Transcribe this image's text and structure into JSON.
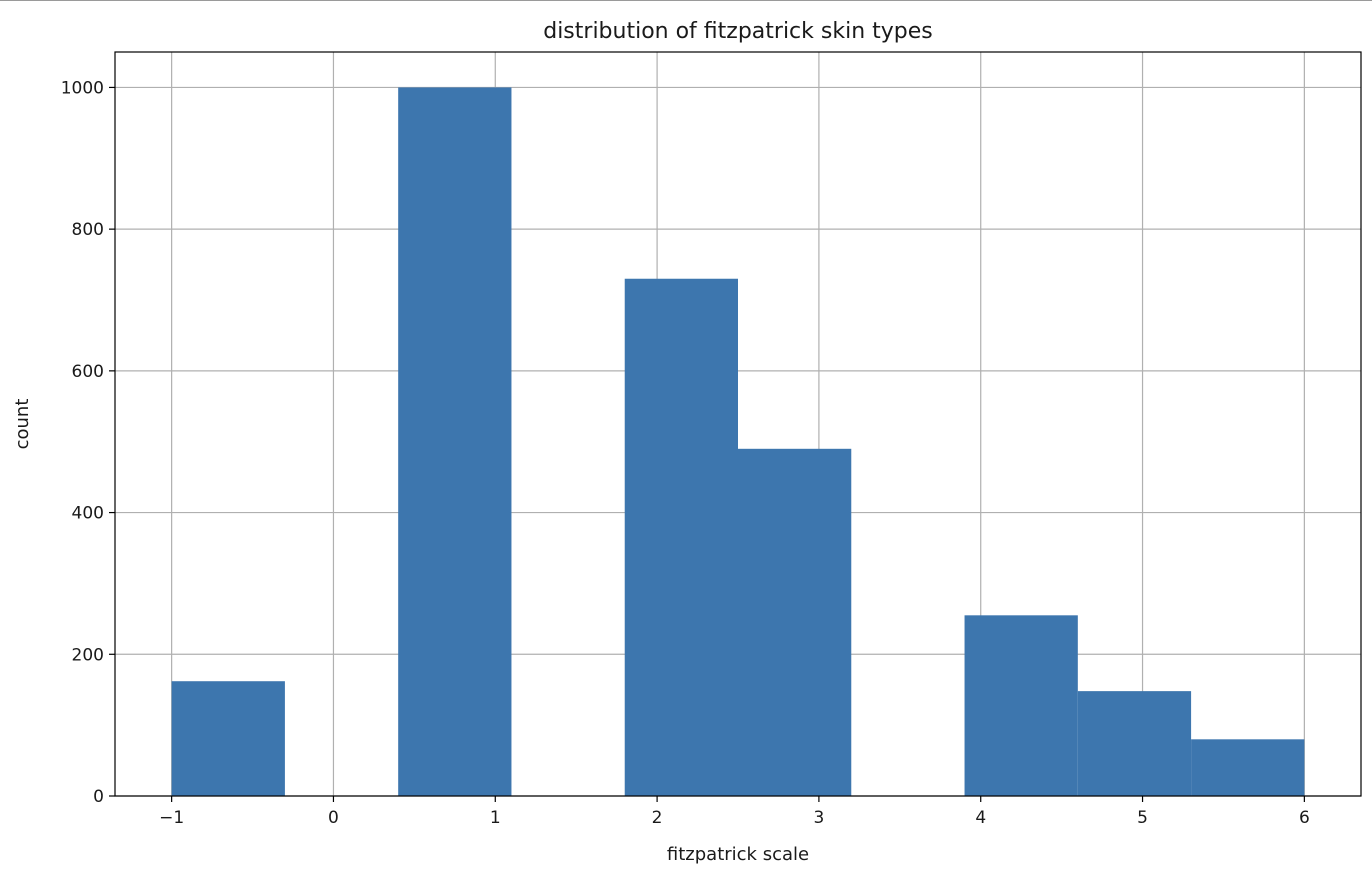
{
  "chart_data": {
    "type": "bar",
    "title": "distribution of fitzpatrick skin types",
    "xlabel": "fitzpatrick scale",
    "ylabel": "count",
    "xlim": [
      -1.35,
      6.35
    ],
    "ylim": [
      0,
      1050
    ],
    "xticks": [
      -1,
      0,
      1,
      2,
      3,
      4,
      5,
      6
    ],
    "xtick_labels": [
      "−1",
      "0",
      "1",
      "2",
      "3",
      "4",
      "5",
      "6"
    ],
    "yticks": [
      0,
      200,
      400,
      600,
      800,
      1000
    ],
    "ytick_labels": [
      "0",
      "200",
      "400",
      "600",
      "800",
      "1000"
    ],
    "grid": true,
    "bars": [
      {
        "x_start": -1.0,
        "x_end": -0.3,
        "value": 162
      },
      {
        "x_start": 0.4,
        "x_end": 1.1,
        "value": 1000
      },
      {
        "x_start": 1.8,
        "x_end": 2.5,
        "value": 730
      },
      {
        "x_start": 2.5,
        "x_end": 3.2,
        "value": 490
      },
      {
        "x_start": 3.9,
        "x_end": 4.6,
        "value": 255
      },
      {
        "x_start": 4.6,
        "x_end": 5.3,
        "value": 148
      },
      {
        "x_start": 5.3,
        "x_end": 6.0,
        "value": 80
      }
    ],
    "bar_color": "#3d76ae",
    "grid_color": "#b0b0b0"
  }
}
